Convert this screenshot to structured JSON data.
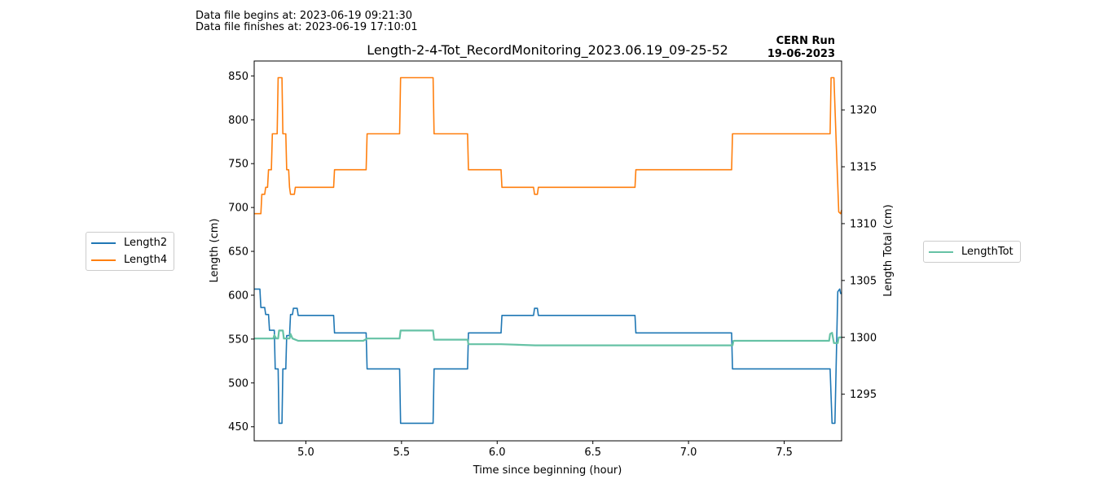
{
  "header": {
    "begin": "Data file begins at: 2023-06-19 09:21:30",
    "finish": "Data file finishes at: 2023-06-19 17:10:01"
  },
  "chart_data": {
    "type": "line",
    "title": "Length-2-4-Tot_RecordMonitoring_2023.06.19_09-25-52",
    "run_label": [
      "CERN Run",
      "19-06-2023"
    ],
    "xlabel": "Time since beginning (hour)",
    "ylabel": "Length (cm)",
    "y2label": "Length Total (cm)",
    "xlim": [
      4.73,
      7.8
    ],
    "ylim": [
      434,
      867
    ],
    "y2lim": [
      1290.9,
      1324.3
    ],
    "xticks": [
      5.0,
      5.5,
      6.0,
      6.5,
      7.0,
      7.5
    ],
    "yticks": [
      450,
      500,
      550,
      600,
      650,
      700,
      750,
      800,
      850
    ],
    "y2ticks": [
      1295,
      1300,
      1305,
      1310,
      1315,
      1320
    ],
    "grid": false,
    "legend_left": "left-outside",
    "legend_right": "right-outside",
    "series": [
      {
        "name": "Length2",
        "axis": "left",
        "color": "#1f77b4",
        "points": [
          [
            4.73,
            607
          ],
          [
            4.76,
            607
          ],
          [
            4.765,
            586
          ],
          [
            4.785,
            586
          ],
          [
            4.79,
            578
          ],
          [
            4.805,
            578
          ],
          [
            4.81,
            560
          ],
          [
            4.835,
            560
          ],
          [
            4.84,
            516
          ],
          [
            4.855,
            516
          ],
          [
            4.86,
            454
          ],
          [
            4.875,
            454
          ],
          [
            4.88,
            516
          ],
          [
            4.895,
            516
          ],
          [
            4.9,
            554
          ],
          [
            4.915,
            554
          ],
          [
            4.92,
            578
          ],
          [
            4.93,
            578
          ],
          [
            4.935,
            585
          ],
          [
            4.955,
            585
          ],
          [
            4.96,
            577
          ],
          [
            5.145,
            577
          ],
          [
            5.15,
            557
          ],
          [
            5.315,
            557
          ],
          [
            5.32,
            516
          ],
          [
            5.49,
            516
          ],
          [
            5.495,
            454
          ],
          [
            5.665,
            454
          ],
          [
            5.67,
            516
          ],
          [
            5.845,
            516
          ],
          [
            5.85,
            557
          ],
          [
            6.02,
            557
          ],
          [
            6.025,
            577
          ],
          [
            6.19,
            577
          ],
          [
            6.195,
            585
          ],
          [
            6.21,
            585
          ],
          [
            6.215,
            577
          ],
          [
            6.72,
            577
          ],
          [
            6.725,
            557
          ],
          [
            7.225,
            557
          ],
          [
            7.23,
            516
          ],
          [
            7.74,
            516
          ],
          [
            7.75,
            454
          ],
          [
            7.765,
            454
          ],
          [
            7.78,
            604
          ],
          [
            7.79,
            607
          ],
          [
            7.795,
            602
          ],
          [
            7.8,
            602
          ]
        ]
      },
      {
        "name": "Length4",
        "axis": "left",
        "color": "#ff7f0e",
        "points": [
          [
            4.73,
            693
          ],
          [
            4.765,
            693
          ],
          [
            4.77,
            715
          ],
          [
            4.785,
            715
          ],
          [
            4.79,
            723
          ],
          [
            4.8,
            723
          ],
          [
            4.805,
            743
          ],
          [
            4.82,
            743
          ],
          [
            4.825,
            784
          ],
          [
            4.85,
            784
          ],
          [
            4.855,
            848
          ],
          [
            4.875,
            848
          ],
          [
            4.88,
            784
          ],
          [
            4.895,
            784
          ],
          [
            4.9,
            743
          ],
          [
            4.91,
            743
          ],
          [
            4.915,
            723
          ],
          [
            4.92,
            715
          ],
          [
            4.94,
            715
          ],
          [
            4.945,
            723
          ],
          [
            5.145,
            723
          ],
          [
            5.15,
            743
          ],
          [
            5.315,
            743
          ],
          [
            5.32,
            784
          ],
          [
            5.49,
            784
          ],
          [
            5.495,
            848
          ],
          [
            5.665,
            848
          ],
          [
            5.67,
            784
          ],
          [
            5.845,
            784
          ],
          [
            5.85,
            743
          ],
          [
            6.02,
            743
          ],
          [
            6.025,
            723
          ],
          [
            6.19,
            723
          ],
          [
            6.195,
            715
          ],
          [
            6.21,
            715
          ],
          [
            6.215,
            723
          ],
          [
            6.72,
            723
          ],
          [
            6.725,
            743
          ],
          [
            7.225,
            743
          ],
          [
            7.23,
            784
          ],
          [
            7.74,
            784
          ],
          [
            7.745,
            848
          ],
          [
            7.76,
            848
          ],
          [
            7.77,
            784
          ],
          [
            7.785,
            695
          ],
          [
            7.795,
            693
          ],
          [
            7.8,
            697
          ]
        ]
      },
      {
        "name": "LengthTot",
        "axis": "right",
        "color": "#66c2a5",
        "points": [
          [
            4.73,
            1299.9
          ],
          [
            4.83,
            1299.9
          ],
          [
            4.835,
            1300.2
          ],
          [
            4.845,
            1299.9
          ],
          [
            4.855,
            1299.9
          ],
          [
            4.86,
            1300.6
          ],
          [
            4.88,
            1300.6
          ],
          [
            4.885,
            1299.9
          ],
          [
            4.915,
            1299.9
          ],
          [
            4.92,
            1300.3
          ],
          [
            4.93,
            1299.9
          ],
          [
            4.96,
            1299.7
          ],
          [
            5.3,
            1299.7
          ],
          [
            5.32,
            1299.9
          ],
          [
            5.49,
            1299.9
          ],
          [
            5.495,
            1300.6
          ],
          [
            5.665,
            1300.6
          ],
          [
            5.67,
            1299.8
          ],
          [
            5.845,
            1299.8
          ],
          [
            5.85,
            1299.4
          ],
          [
            6.02,
            1299.4
          ],
          [
            6.2,
            1299.3
          ],
          [
            6.72,
            1299.3
          ],
          [
            7.23,
            1299.3
          ],
          [
            7.235,
            1299.7
          ],
          [
            7.735,
            1299.7
          ],
          [
            7.74,
            1300.3
          ],
          [
            7.75,
            1300.4
          ],
          [
            7.76,
            1299.5
          ],
          [
            7.78,
            1299.5
          ],
          [
            7.785,
            1300
          ],
          [
            7.8,
            1300
          ]
        ]
      }
    ]
  }
}
